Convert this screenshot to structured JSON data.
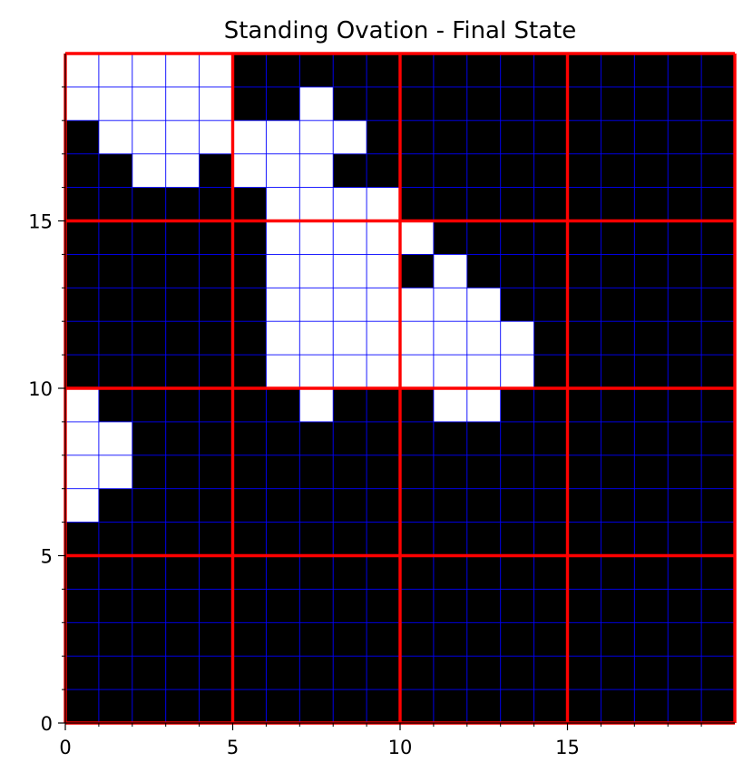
{
  "chart_data": {
    "type": "heatmap",
    "title": "Standing Ovation - Final State",
    "xlabel": "",
    "ylabel": "",
    "xlim": [
      0,
      20
    ],
    "ylim": [
      0,
      20
    ],
    "x_ticks": [
      0,
      5,
      10,
      15
    ],
    "y_ticks": [
      0,
      5,
      10,
      15
    ],
    "x_tick_labels": [
      "0",
      "5",
      "10",
      "15"
    ],
    "y_tick_labels": [
      "0",
      "5",
      "10",
      "15"
    ],
    "grid": true,
    "minor_grid_color": "#0000ff",
    "major_grid_color": "#ff0000",
    "major_grid_every": 5,
    "value_colors": {
      "0": "#000000",
      "1": "#ffffff"
    },
    "legend": "none",
    "rows_top_to_bottom": [
      [
        1,
        1,
        1,
        1,
        1,
        0,
        0,
        0,
        0,
        0,
        0,
        0,
        0,
        0,
        0,
        0,
        0,
        0,
        0,
        0
      ],
      [
        1,
        1,
        1,
        1,
        1,
        0,
        0,
        1,
        0,
        0,
        0,
        0,
        0,
        0,
        0,
        0,
        0,
        0,
        0,
        0
      ],
      [
        0,
        1,
        1,
        1,
        1,
        1,
        1,
        1,
        1,
        0,
        0,
        0,
        0,
        0,
        0,
        0,
        0,
        0,
        0,
        0
      ],
      [
        0,
        0,
        1,
        1,
        0,
        1,
        1,
        1,
        0,
        0,
        0,
        0,
        0,
        0,
        0,
        0,
        0,
        0,
        0,
        0
      ],
      [
        0,
        0,
        0,
        0,
        0,
        0,
        1,
        1,
        1,
        1,
        0,
        0,
        0,
        0,
        0,
        0,
        0,
        0,
        0,
        0
      ],
      [
        0,
        0,
        0,
        0,
        0,
        0,
        1,
        1,
        1,
        1,
        1,
        0,
        0,
        0,
        0,
        0,
        0,
        0,
        0,
        0
      ],
      [
        0,
        0,
        0,
        0,
        0,
        0,
        1,
        1,
        1,
        1,
        0,
        1,
        0,
        0,
        0,
        0,
        0,
        0,
        0,
        0
      ],
      [
        0,
        0,
        0,
        0,
        0,
        0,
        1,
        1,
        1,
        1,
        1,
        1,
        1,
        0,
        0,
        0,
        0,
        0,
        0,
        0
      ],
      [
        0,
        0,
        0,
        0,
        0,
        0,
        1,
        1,
        1,
        1,
        1,
        1,
        1,
        1,
        0,
        0,
        0,
        0,
        0,
        0
      ],
      [
        0,
        0,
        0,
        0,
        0,
        0,
        1,
        1,
        1,
        1,
        1,
        1,
        1,
        1,
        0,
        0,
        0,
        0,
        0,
        0
      ],
      [
        1,
        0,
        0,
        0,
        0,
        0,
        0,
        1,
        0,
        0,
        0,
        1,
        1,
        0,
        0,
        0,
        0,
        0,
        0,
        0
      ],
      [
        1,
        1,
        0,
        0,
        0,
        0,
        0,
        0,
        0,
        0,
        0,
        0,
        0,
        0,
        0,
        0,
        0,
        0,
        0,
        0
      ],
      [
        1,
        1,
        0,
        0,
        0,
        0,
        0,
        0,
        0,
        0,
        0,
        0,
        0,
        0,
        0,
        0,
        0,
        0,
        0,
        0
      ],
      [
        1,
        0,
        0,
        0,
        0,
        0,
        0,
        0,
        0,
        0,
        0,
        0,
        0,
        0,
        0,
        0,
        0,
        0,
        0,
        0
      ],
      [
        0,
        0,
        0,
        0,
        0,
        0,
        0,
        0,
        0,
        0,
        0,
        0,
        0,
        0,
        0,
        0,
        0,
        0,
        0,
        0
      ],
      [
        0,
        0,
        0,
        0,
        0,
        0,
        0,
        0,
        0,
        0,
        0,
        0,
        0,
        0,
        0,
        0,
        0,
        0,
        0,
        0
      ],
      [
        0,
        0,
        0,
        0,
        0,
        0,
        0,
        0,
        0,
        0,
        0,
        0,
        0,
        0,
        0,
        0,
        0,
        0,
        0,
        0
      ],
      [
        0,
        0,
        0,
        0,
        0,
        0,
        0,
        0,
        0,
        0,
        0,
        0,
        0,
        0,
        0,
        0,
        0,
        0,
        0,
        0
      ],
      [
        0,
        0,
        0,
        0,
        0,
        0,
        0,
        0,
        0,
        0,
        0,
        0,
        0,
        0,
        0,
        0,
        0,
        0,
        0,
        0
      ],
      [
        0,
        0,
        0,
        0,
        0,
        0,
        0,
        0,
        0,
        0,
        0,
        0,
        0,
        0,
        0,
        0,
        0,
        0,
        0,
        0
      ]
    ]
  }
}
